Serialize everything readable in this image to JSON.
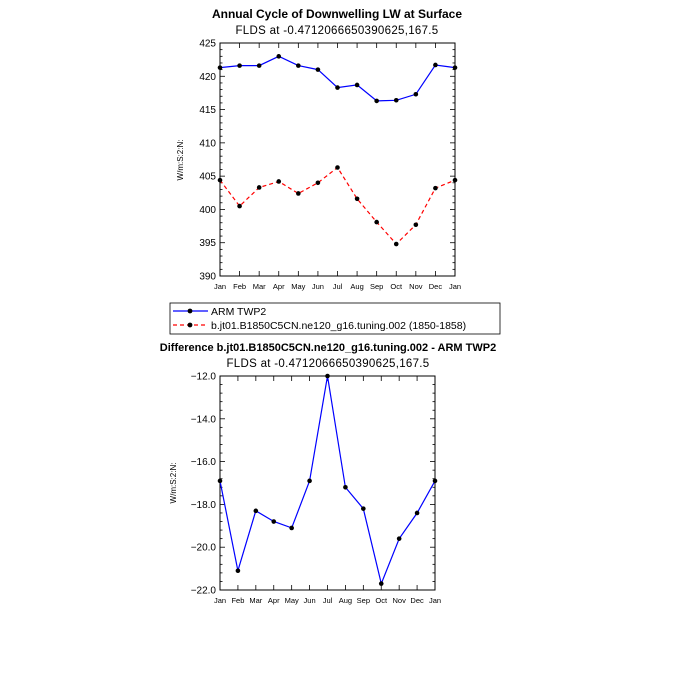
{
  "chart_data": [
    {
      "type": "line",
      "title": "Annual Cycle of Downwelling LW at Surface",
      "subtitle": "FLDS at  -0.4712066650390625,167.5",
      "ylabel": "W/m:S:2:N:",
      "xlabel": "",
      "categories": [
        "Jan",
        "Feb",
        "Mar",
        "Apr",
        "May",
        "Jun",
        "Jul",
        "Aug",
        "Sep",
        "Oct",
        "Nov",
        "Dec",
        "Jan"
      ],
      "ylim": [
        390,
        425
      ],
      "yticks": [
        "390",
        "395",
        "400",
        "405",
        "410",
        "415",
        "420",
        "425"
      ],
      "series": [
        {
          "name": "ARM TWP2",
          "color": "#0000ff",
          "dash": "solid",
          "values": [
            421.3,
            421.6,
            421.6,
            423.0,
            421.6,
            421.0,
            418.3,
            418.7,
            416.3,
            416.4,
            417.3,
            421.7,
            421.3
          ]
        },
        {
          "name": "b.jt01.B1850C5CN.ne120_g16.tuning.002 (1850-1858)",
          "color": "#ff0000",
          "dash": "dashed",
          "values": [
            404.4,
            400.5,
            403.3,
            404.2,
            402.4,
            404.0,
            406.3,
            401.6,
            398.1,
            394.8,
            397.7,
            403.2,
            404.4
          ]
        }
      ],
      "legend": "bottom-left"
    },
    {
      "type": "line",
      "title": "Difference b.jt01.B1850C5CN.ne120_g16.tuning.002 - ARM TWP2",
      "subtitle": "FLDS at  -0.4712066650390625,167.5",
      "ylabel": "W/m:S:2:N:",
      "xlabel": "",
      "categories": [
        "Jan",
        "Feb",
        "Mar",
        "Apr",
        "May",
        "Jun",
        "Jul",
        "Aug",
        "Sep",
        "Oct",
        "Nov",
        "Dec",
        "Jan"
      ],
      "ylim": [
        -22.0,
        -12.0
      ],
      "yticks": [
        "-22.0",
        "-20.0",
        "-18.0",
        "-16.0",
        "-14.0",
        "-12.0"
      ],
      "series": [
        {
          "color": "#0000ff",
          "dash": "solid",
          "values": [
            -16.9,
            -21.1,
            -18.3,
            -18.8,
            -19.1,
            -16.9,
            -12.0,
            -17.2,
            -18.2,
            -21.7,
            -19.6,
            -18.4,
            -16.9
          ]
        }
      ]
    }
  ]
}
